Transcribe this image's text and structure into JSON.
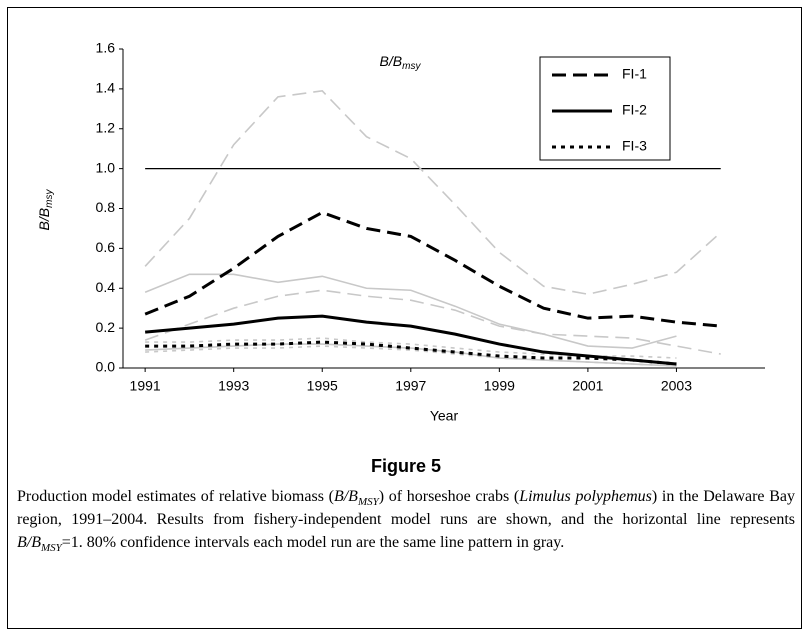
{
  "chart_data": {
    "type": "line",
    "annotation": [
      "B/B",
      "msy"
    ],
    "ylabel": [
      "B/B",
      "msy"
    ],
    "xlabel": "Year",
    "x": [
      1991,
      1992,
      1993,
      1994,
      1995,
      1996,
      1997,
      1998,
      1999,
      2000,
      2001,
      2002,
      2003,
      2004
    ],
    "xlim": [
      1990.5,
      2005
    ],
    "xticks": [
      1991,
      1993,
      1995,
      1997,
      1999,
      2001,
      2003
    ],
    "ylim": [
      0,
      1.6
    ],
    "yticks": [
      {
        "value": 0,
        "label": "0.0"
      },
      0.2,
      0.4,
      0.6,
      0.8,
      {
        "value": 1,
        "label": "1.0"
      },
      1.2,
      1.4,
      1.6
    ],
    "reference_line": {
      "value": 1,
      "color": "#000000"
    },
    "legend": "upper right",
    "series": [
      {
        "name": "FI-1",
        "color": "#000000",
        "style": "dashed",
        "values": [
          0.27,
          0.36,
          0.5,
          0.66,
          0.78,
          0.7,
          0.66,
          0.54,
          0.41,
          0.3,
          0.25,
          0.26,
          0.23,
          0.21
        ]
      },
      {
        "name": "FI-2",
        "color": "#000000",
        "style": "solid",
        "values": [
          0.18,
          0.2,
          0.22,
          0.25,
          0.26,
          0.23,
          0.21,
          0.17,
          0.12,
          0.08,
          0.06,
          0.04,
          0.02,
          null
        ]
      },
      {
        "name": "FI-3",
        "color": "#000000",
        "style": "dotted",
        "values": [
          0.11,
          0.11,
          0.12,
          0.12,
          0.13,
          0.12,
          0.1,
          0.08,
          0.06,
          0.05,
          0.05,
          0.04,
          0.02,
          null
        ]
      }
    ],
    "intervals": [
      {
        "color": "#c8c8c8",
        "style": "dashed",
        "values": [
          0.51,
          0.75,
          1.12,
          1.36,
          1.39,
          1.16,
          1.05,
          0.82,
          0.58,
          0.41,
          0.37,
          0.42,
          0.48,
          0.68
        ]
      },
      {
        "color": "#c8c8c8",
        "style": "dashed",
        "values": [
          0.14,
          0.22,
          0.3,
          0.36,
          0.39,
          0.36,
          0.34,
          0.29,
          0.21,
          0.17,
          0.16,
          0.15,
          0.11,
          0.07
        ]
      },
      {
        "color": "#c8c8c8",
        "style": "solid",
        "values": [
          0.38,
          0.47,
          0.47,
          0.43,
          0.46,
          0.4,
          0.39,
          0.31,
          0.22,
          0.17,
          0.11,
          0.1,
          0.16,
          null
        ]
      },
      {
        "color": "#c8c8c8",
        "style": "solid",
        "values": [
          0.09,
          0.1,
          0.11,
          0.12,
          0.12,
          0.11,
          0.1,
          0.08,
          0.05,
          0.04,
          0.03,
          0.02,
          0.01,
          null
        ]
      },
      {
        "color": "#c8c8c8",
        "style": "dotted",
        "values": [
          0.13,
          0.13,
          0.14,
          0.14,
          0.15,
          0.13,
          0.12,
          0.1,
          0.08,
          0.07,
          0.06,
          0.06,
          0.05,
          null
        ]
      },
      {
        "color": "#c8c8c8",
        "style": "dotted",
        "values": [
          0.08,
          0.09,
          0.1,
          0.1,
          0.11,
          0.1,
          0.09,
          0.07,
          0.05,
          0.04,
          0.03,
          0.02,
          0.01,
          null
        ]
      }
    ]
  },
  "figure_label": "Figure 5",
  "caption": [
    {
      "text": "Production model estimates of relative biomass ("
    },
    {
      "text": "B/B",
      "italic": true
    },
    {
      "text": "MSY",
      "italic": true,
      "sub": true
    },
    {
      "text": ") of horseshoe crabs ("
    },
    {
      "text": "Limulus polyphemus",
      "italic": true
    },
    {
      "text": ") in the Delaware Bay region, 1991–2004. Results from fishery-independent model runs are shown, and the horizontal line represents "
    },
    {
      "text": "B/B",
      "italic": true
    },
    {
      "text": "MSY",
      "italic": true,
      "sub": true
    },
    {
      "text": "=1. 80% confidence intervals each model run are the same line pattern in gray."
    }
  ]
}
